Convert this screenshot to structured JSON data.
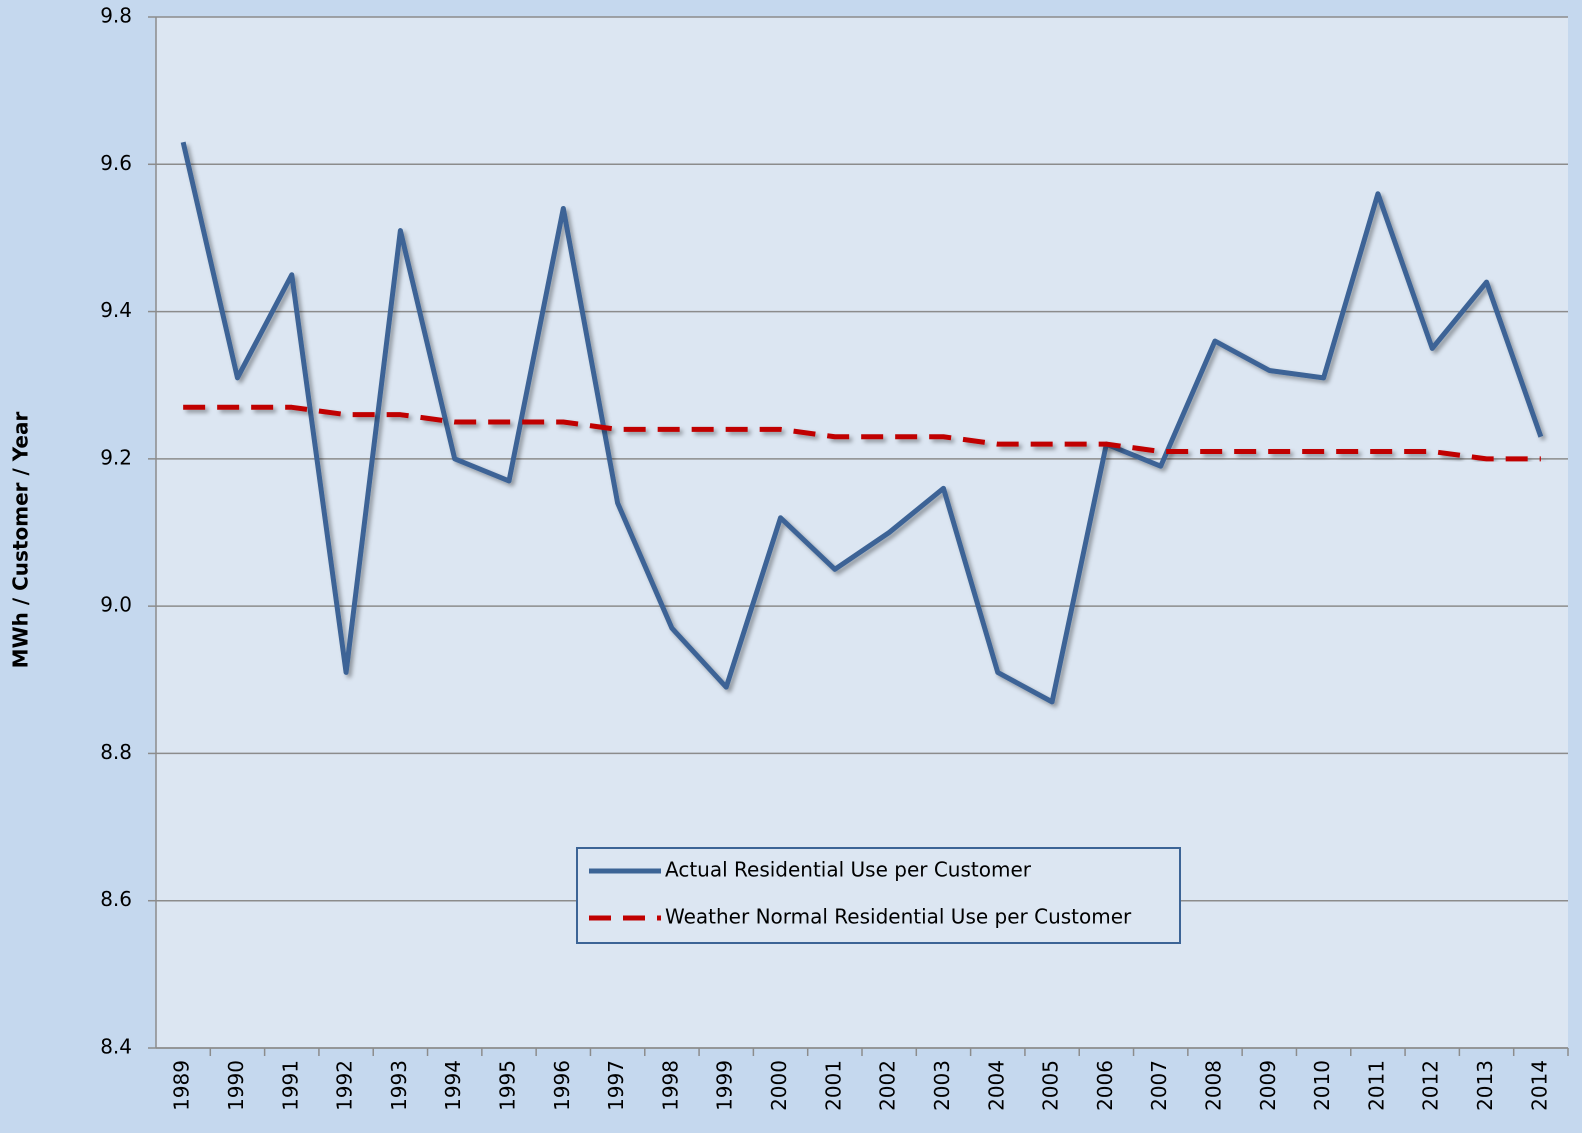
{
  "chart_data": {
    "type": "line",
    "y_label": "MWh / Customer / Year",
    "categories": [
      "1989",
      "1990",
      "1991",
      "1992",
      "1993",
      "1994",
      "1995",
      "1996",
      "1997",
      "1998",
      "1999",
      "2000",
      "2001",
      "2002",
      "2003",
      "2004",
      "2005",
      "2006",
      "2007",
      "2008",
      "2009",
      "2010",
      "2011",
      "2012",
      "2013",
      "2014"
    ],
    "series": [
      {
        "name": "Actual Residential Use per Customer",
        "color": "#3c6496",
        "dash": false,
        "values": [
          9.63,
          9.31,
          9.45,
          8.91,
          9.51,
          9.2,
          9.17,
          9.54,
          9.14,
          8.97,
          8.89,
          9.12,
          9.05,
          9.1,
          9.16,
          8.91,
          8.87,
          9.22,
          9.19,
          9.36,
          9.32,
          9.31,
          9.56,
          9.35,
          9.44,
          9.23
        ]
      },
      {
        "name": "Weather Normal Residential Use per Customer",
        "color": "#c00000",
        "dash": true,
        "values": [
          9.27,
          9.27,
          9.27,
          9.26,
          9.26,
          9.25,
          9.25,
          9.25,
          9.24,
          9.24,
          9.24,
          9.24,
          9.23,
          9.23,
          9.23,
          9.22,
          9.22,
          9.22,
          9.21,
          9.21,
          9.21,
          9.21,
          9.21,
          9.21,
          9.2,
          9.2
        ]
      }
    ],
    "ylim": [
      8.4,
      9.8
    ],
    "yticks": [
      8.4,
      8.6,
      8.8,
      {
        "value": 9,
        "label": "9.0"
      },
      9.2,
      9.4,
      9.6,
      9.8
    ],
    "grid": true,
    "legend": "bottom-center"
  }
}
